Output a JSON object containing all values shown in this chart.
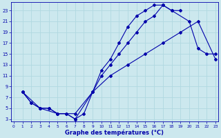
{
  "xlabel": "Graphe des températures (°C)",
  "bg_color": "#cce8ee",
  "grid_color": "#b0d8e0",
  "line_color": "#0000aa",
  "yticks": [
    3,
    5,
    7,
    9,
    11,
    13,
    15,
    17,
    19,
    21,
    23
  ],
  "xticks": [
    0,
    1,
    2,
    3,
    4,
    5,
    6,
    7,
    8,
    9,
    10,
    11,
    12,
    13,
    14,
    15,
    16,
    17,
    18,
    19,
    20,
    21,
    22,
    23
  ],
  "curve1_x": [
    1,
    2,
    3,
    4,
    5,
    6,
    7,
    8,
    9,
    10,
    11,
    12,
    13,
    14,
    15,
    16,
    17,
    18,
    19
  ],
  "curve1_y": [
    8,
    6,
    5,
    5,
    4,
    4,
    3,
    4,
    8,
    12,
    14,
    17,
    20,
    22,
    23,
    24,
    24,
    23,
    23
  ],
  "curve2_x": [
    1,
    2,
    3,
    4,
    5,
    6,
    7,
    9,
    10,
    11,
    12,
    13,
    14,
    15,
    16,
    17,
    18,
    20,
    21,
    22,
    23
  ],
  "curve2_y": [
    8,
    6,
    5,
    5,
    4,
    4,
    3,
    8,
    11,
    13,
    15,
    17,
    19,
    21,
    22,
    24,
    23,
    21,
    16,
    15,
    15
  ],
  "curve3_x": [
    1,
    3,
    5,
    7,
    9,
    11,
    13,
    15,
    17,
    19,
    21,
    23
  ],
  "curve3_y": [
    8,
    5,
    4,
    4,
    8,
    11,
    13,
    15,
    17,
    19,
    21,
    14
  ],
  "xlim": [
    -0.3,
    23.3
  ],
  "ylim": [
    2.5,
    24.5
  ]
}
